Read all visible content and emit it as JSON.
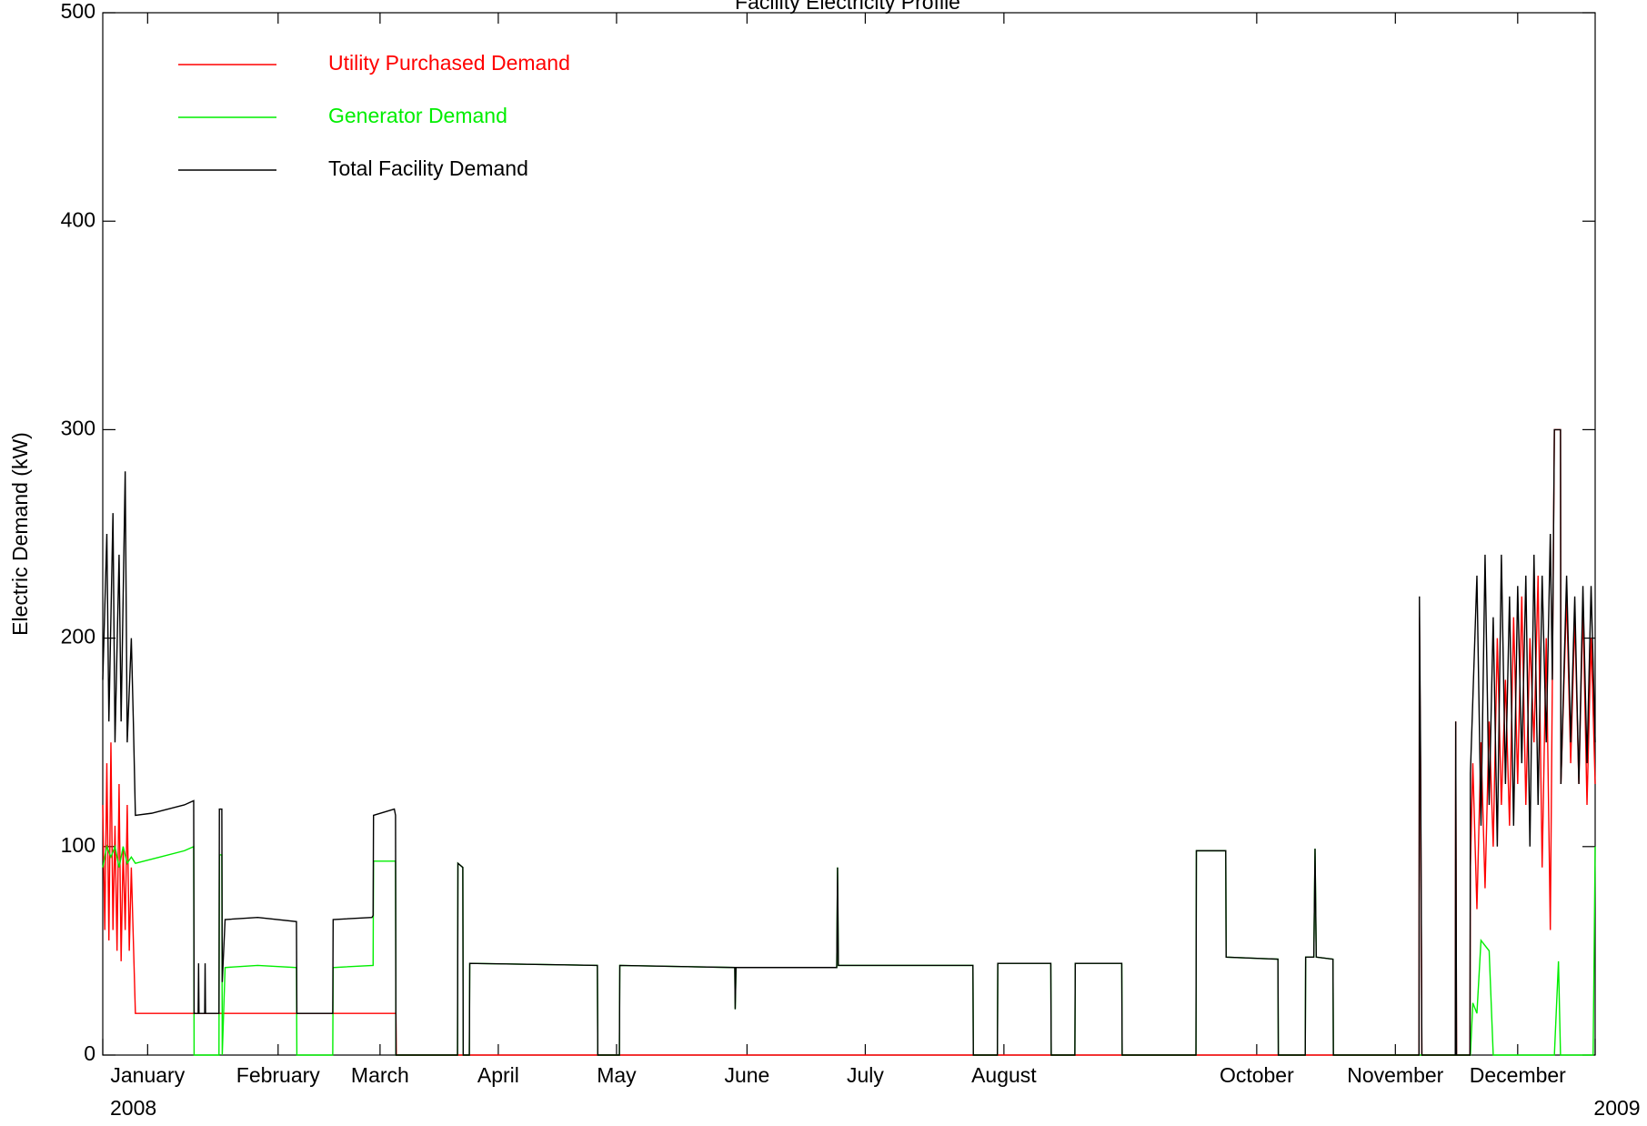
{
  "chart_data": {
    "type": "line",
    "title": "Facility Electricity Profile",
    "ylabel": "Electric Demand (kW)",
    "xlim": [
      0,
      366
    ],
    "ylim": [
      0,
      500
    ],
    "yticks": [
      0,
      100,
      200,
      300,
      400,
      500
    ],
    "xticks": [
      {
        "value": 11,
        "label": "January"
      },
      {
        "value": 43,
        "label": "February"
      },
      {
        "value": 68,
        "label": "March"
      },
      {
        "value": 97,
        "label": "April"
      },
      {
        "value": 126,
        "label": "May"
      },
      {
        "value": 158,
        "label": "June"
      },
      {
        "value": 187,
        "label": "July"
      },
      {
        "value": 221,
        "label": "August"
      },
      {
        "value": 283,
        "label": "October"
      },
      {
        "value": 317,
        "label": "November"
      },
      {
        "value": 347,
        "label": "December"
      }
    ],
    "year_ticks": [
      {
        "value": 0,
        "label": "2008"
      },
      {
        "value": 366,
        "label": "2009"
      }
    ],
    "legend": "upper left",
    "series": [
      {
        "name": "Utility Purchased Demand",
        "color": "#ff0000",
        "x": [
          0,
          0.5,
          1,
          1.5,
          2,
          2.5,
          3,
          3.5,
          4,
          4.5,
          5,
          5.5,
          6,
          6.5,
          7,
          8,
          71.9,
          72,
          322.8,
          322.9,
          323.2,
          323.5,
          331.7,
          331.8,
          332,
          335.3,
          335.4,
          336,
          337,
          338,
          339,
          340,
          341,
          342,
          343,
          344,
          345,
          346,
          347,
          348,
          349,
          350,
          351,
          352,
          353,
          354,
          355,
          356,
          357.5,
          357.6,
          359,
          360,
          361,
          362,
          363,
          364,
          365,
          366
        ],
        "values": [
          120,
          60,
          140,
          55,
          150,
          60,
          110,
          50,
          130,
          45,
          100,
          60,
          120,
          50,
          90,
          20,
          20,
          0,
          0,
          210,
          130,
          0,
          0,
          160,
          0,
          0,
          90,
          140,
          70,
          150,
          80,
          160,
          100,
          200,
          120,
          180,
          110,
          210,
          130,
          220,
          120,
          200,
          150,
          230,
          90,
          200,
          60,
          300,
          300,
          130,
          220,
          140,
          210,
          130,
          215,
          120,
          200,
          130
        ]
      },
      {
        "name": "Generator Demand",
        "color": "#00ee00",
        "x": [
          0,
          1,
          2,
          3,
          4,
          5,
          6,
          7,
          8,
          14,
          20,
          22.3,
          22.4,
          28.5,
          28.6,
          29.2,
          29.3,
          30,
          38,
          47.5,
          47.6,
          56.4,
          56.5,
          66.3,
          66.4,
          71.8,
          71.9,
          87,
          87.1,
          88.3,
          88.4,
          89.9,
          90,
          121.3,
          121.4,
          126.7,
          126.8,
          155,
          155.1,
          155.3,
          180,
          180.2,
          180.4,
          213.4,
          213.5,
          219.4,
          219.5,
          232.5,
          232.6,
          238.4,
          238.5,
          249.9,
          250,
          268.1,
          268.2,
          275.4,
          275.5,
          288.2,
          288.3,
          294.9,
          295,
          297,
          297.3,
          297.6,
          301.7,
          301.8,
          335.4,
          336,
          337,
          338,
          340,
          341,
          356,
          357,
          357.5,
          365.5,
          366
        ],
        "values": [
          90,
          100,
          95,
          100,
          90,
          100,
          92,
          95,
          92,
          95,
          98,
          100,
          0,
          0,
          96,
          96,
          0,
          42,
          43,
          42,
          0,
          0,
          42,
          43,
          93,
          93,
          0,
          0,
          92,
          90,
          0,
          0,
          44,
          43,
          0,
          0,
          43,
          42,
          22,
          42,
          42,
          90,
          43,
          43,
          0,
          0,
          44,
          44,
          0,
          0,
          44,
          44,
          0,
          0,
          98,
          98,
          47,
          46,
          0,
          0,
          47,
          47,
          99,
          47,
          46,
          0,
          0,
          25,
          20,
          55,
          50,
          0,
          0,
          45,
          0,
          0,
          100
        ]
      },
      {
        "name": "Total Facility Demand",
        "color": "#000000",
        "x": [
          0,
          1,
          1.5,
          2.5,
          3,
          4,
          4.5,
          5.5,
          6,
          7,
          7.5,
          8,
          12,
          16,
          20,
          22.3,
          22.4,
          23.4,
          23.5,
          23.6,
          25,
          25.1,
          25.2,
          28.5,
          28.6,
          29.2,
          29.3,
          30,
          38,
          47.5,
          47.6,
          56.4,
          56.5,
          66,
          66.3,
          66.4,
          71.5,
          71.8,
          71.9,
          87,
          87.1,
          88.3,
          88.4,
          89.9,
          90,
          121.3,
          121.4,
          126.7,
          126.8,
          155,
          155.1,
          155.3,
          180,
          180.2,
          180.4,
          213.4,
          213.5,
          219.4,
          219.5,
          232.5,
          232.6,
          238.4,
          238.5,
          249.9,
          250,
          268.1,
          268.2,
          275.4,
          275.5,
          288.2,
          288.3,
          294.9,
          295,
          297,
          297.3,
          297.6,
          301.7,
          301.8,
          322.8,
          322.9,
          323.2,
          323.5,
          331.7,
          331.8,
          332,
          335.3,
          335.4,
          337,
          338,
          339,
          340,
          341,
          342,
          343,
          344,
          345,
          346,
          347,
          348,
          349,
          350,
          351,
          352,
          353,
          354,
          355,
          355.5,
          356,
          357.5,
          357.6,
          359,
          360,
          361,
          362,
          363,
          364,
          365,
          366
        ],
        "values": [
          180,
          250,
          160,
          260,
          150,
          240,
          160,
          280,
          150,
          200,
          160,
          115,
          116,
          118,
          120,
          122,
          20,
          20,
          44,
          20,
          20,
          44,
          20,
          20,
          118,
          118,
          35,
          65,
          66,
          64,
          20,
          20,
          65,
          66,
          67,
          115,
          118,
          115,
          0,
          0,
          92,
          90,
          0,
          0,
          44,
          43,
          0,
          0,
          43,
          42,
          22,
          42,
          42,
          90,
          43,
          43,
          0,
          0,
          44,
          44,
          0,
          0,
          44,
          44,
          0,
          0,
          98,
          98,
          47,
          46,
          0,
          0,
          47,
          47,
          99,
          47,
          46,
          0,
          0,
          220,
          140,
          0,
          0,
          160,
          0,
          0,
          135,
          230,
          110,
          240,
          120,
          210,
          100,
          240,
          130,
          220,
          110,
          225,
          140,
          230,
          100,
          240,
          120,
          230,
          150,
          250,
          180,
          300,
          300,
          130,
          230,
          150,
          220,
          130,
          225,
          140,
          225,
          150
        ]
      }
    ]
  }
}
